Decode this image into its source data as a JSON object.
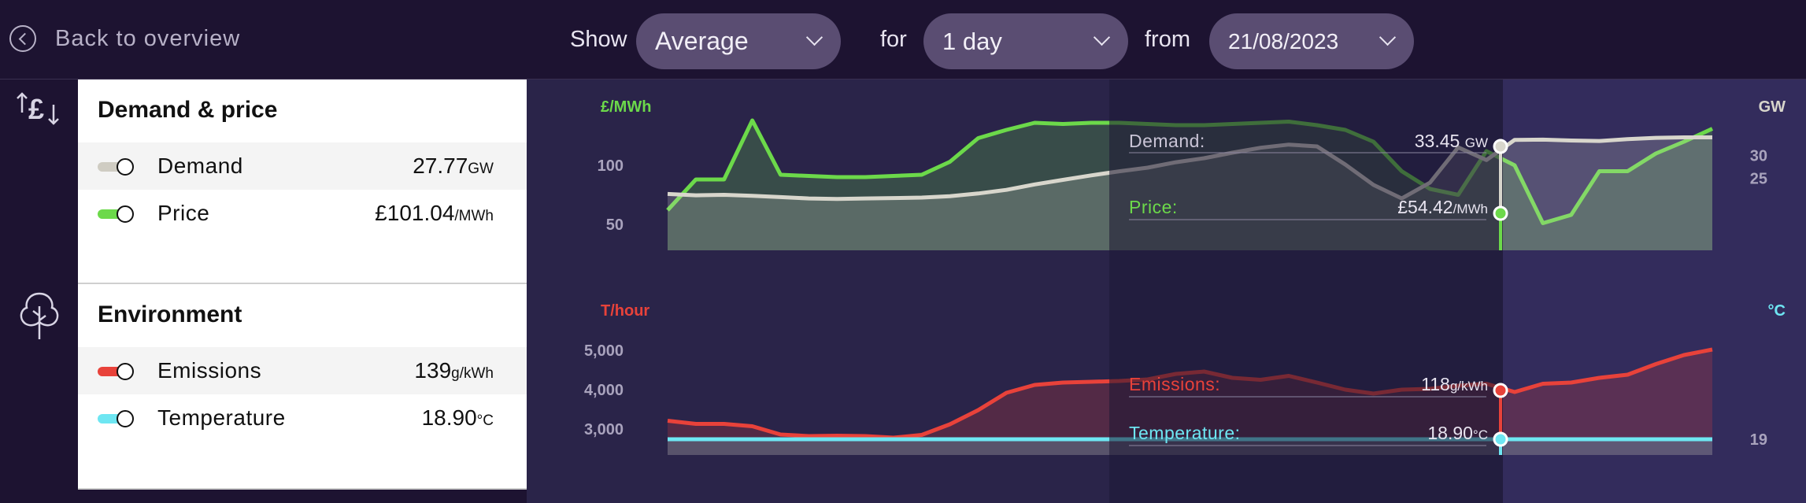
{
  "header": {
    "back_label": "Back to overview",
    "show_label": "Show",
    "show_value": "Average",
    "for_label": "for",
    "for_value": "1 day",
    "from_label": "from",
    "from_value": "21/08/2023"
  },
  "panels": [
    {
      "title": "Demand & price",
      "icon": "pound-arrows-icon",
      "rows": [
        {
          "name": "Demand",
          "value": "27.77",
          "unit": "GW",
          "color": "#cfccc2"
        },
        {
          "name": "Price",
          "value": "£101.04",
          "unit": "/MWh",
          "color": "#6cd94a"
        }
      ]
    },
    {
      "title": "Environment",
      "icon": "tree-icon",
      "rows": [
        {
          "name": "Emissions",
          "value": "139",
          "unit": "g/kWh",
          "color": "#e8423a"
        },
        {
          "name": "Temperature",
          "value": "18.90",
          "unit": "°C",
          "color": "#6ee6f2"
        }
      ]
    }
  ],
  "tooltips": {
    "demand": {
      "label": "Demand:",
      "value": "33.45",
      "unit": "GW"
    },
    "price": {
      "label": "Price:",
      "value": "£54.42",
      "unit": "/MWh"
    },
    "emissions": {
      "label": "Emissions:",
      "value": "118",
      "unit": "g/kWh"
    },
    "temperature": {
      "label": "Temperature:",
      "value": "18.90",
      "unit": "°C"
    }
  },
  "chart_data": [
    {
      "type": "area",
      "left_axis_label": "£/MWh",
      "right_axis_label": "GW",
      "left_ticks": [
        "100",
        "50"
      ],
      "left_tick_values": [
        100,
        50
      ],
      "right_ticks": [
        "30",
        "25"
      ],
      "right_tick_values": [
        30,
        25
      ],
      "series": [
        {
          "name": "Price",
          "color": "#6cd94a",
          "values": [
            62,
            88,
            88,
            138,
            92,
            91,
            90,
            90,
            91,
            92,
            103,
            123,
            130,
            136,
            135,
            136,
            136,
            135,
            134,
            134,
            135,
            136,
            137,
            134,
            130,
            120,
            95,
            80,
            75,
            112,
            100,
            51,
            58,
            95,
            95,
            110,
            120,
            131
          ]
        },
        {
          "name": "Demand",
          "color": "#d8d6cc",
          "values": [
            21.5,
            21.2,
            21.3,
            21.1,
            20.8,
            20.5,
            20.4,
            20.5,
            20.6,
            20.7,
            21.0,
            21.6,
            22.4,
            23.6,
            24.6,
            25.6,
            26.5,
            27.3,
            28.5,
            29.4,
            30.6,
            31.7,
            32.4,
            32.0,
            28.0,
            23.5,
            20.5,
            24.0,
            31.8,
            29.0,
            33.45,
            33.5,
            33.3,
            33.2,
            33.6,
            33.9,
            34.0,
            34.0
          ]
        }
      ]
    },
    {
      "type": "area",
      "left_axis_label": "T/hour",
      "right_axis_label": "°C",
      "left_ticks": [
        "5,000",
        "4,000",
        "3,000"
      ],
      "left_tick_values": [
        5000,
        4000,
        3000
      ],
      "right_ticks": [
        "19"
      ],
      "right_tick_values": [
        19
      ],
      "series": [
        {
          "name": "Emissions",
          "color": "#e8423a",
          "values": [
            3210,
            3130,
            3130,
            3070,
            2860,
            2820,
            2830,
            2820,
            2780,
            2850,
            3120,
            3480,
            3920,
            4120,
            4180,
            4200,
            4220,
            4260,
            4400,
            4460,
            4300,
            4250,
            4350,
            4180,
            4000,
            3900,
            4000,
            4020,
            4100,
            4150,
            3940,
            4150,
            4180,
            4300,
            4380,
            4650,
            4880,
            5020
          ]
        },
        {
          "name": "Temperature",
          "color": "#6ee6f2",
          "values": [
            18.9,
            18.9,
            18.9,
            18.9,
            18.9,
            18.9,
            18.9,
            18.9,
            18.9,
            18.9,
            18.9,
            18.9,
            18.9,
            18.9,
            18.9,
            18.9,
            18.9,
            18.9,
            18.9,
            18.9,
            18.9,
            18.9,
            18.9,
            18.9,
            18.9,
            18.9,
            18.9,
            18.9,
            18.9,
            18.9,
            18.9,
            18.9,
            18.9,
            18.9,
            18.9,
            18.9,
            18.9,
            18.9
          ]
        }
      ]
    }
  ]
}
